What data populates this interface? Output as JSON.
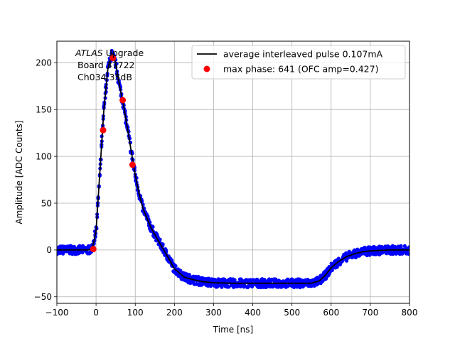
{
  "chart_data": {
    "type": "line",
    "xlabel": "Time [ns]",
    "ylabel": "Amplitude [ADC Counts]",
    "xlim": [
      -100,
      800
    ],
    "ylim": [
      -57,
      223
    ],
    "x_ticks": [
      -100,
      0,
      100,
      200,
      300,
      400,
      500,
      600,
      700,
      800
    ],
    "x_tick_labels": [
      "−100",
      "0",
      "100",
      "200",
      "300",
      "400",
      "500",
      "600",
      "700",
      "800"
    ],
    "y_ticks": [
      -50,
      0,
      50,
      100,
      150,
      200
    ],
    "y_tick_labels": [
      "−50",
      "0",
      "50",
      "100",
      "150",
      "200"
    ],
    "grid": true,
    "legend_position": "top-right",
    "annotation": {
      "line1_italic": "ATLAS",
      "line1_rest": " Upgrade",
      "line2": "Board 37722",
      "line3": "Ch034 35dB"
    },
    "series": [
      {
        "name": "average interleaved pulse 0.107mA",
        "kind": "line",
        "color": "#000000",
        "x": [
          -100,
          -20,
          -10,
          0,
          10,
          20,
          30,
          40,
          50,
          60,
          70,
          80,
          90,
          100,
          110,
          120,
          140,
          160,
          180,
          200,
          225,
          250,
          275,
          300,
          350,
          400,
          450,
          500,
          550,
          570,
          585,
          600,
          620,
          640,
          660,
          680,
          700,
          720,
          750,
          800
        ],
        "y": [
          0,
          0,
          1,
          20,
          85,
          150,
          193,
          210,
          200,
          175,
          155,
          130,
          105,
          80,
          60,
          44,
          24,
          9,
          -5,
          -20,
          -29,
          -32,
          -34,
          -35,
          -35.5,
          -35.5,
          -35.5,
          -35.5,
          -35.5,
          -33,
          -27,
          -19,
          -12,
          -7,
          -4,
          -2,
          -1,
          -0.5,
          0,
          0
        ]
      },
      {
        "kind": "scatter-band",
        "color": "#0000ff",
        "spread": 4.5
      },
      {
        "name": "max phase: 641 (OFC amp=0.427)",
        "kind": "scatter",
        "color": "#ff0000",
        "x": [
          -7,
          18,
          43,
          68,
          93
        ],
        "y": [
          1,
          128,
          205,
          160,
          91
        ]
      }
    ]
  }
}
